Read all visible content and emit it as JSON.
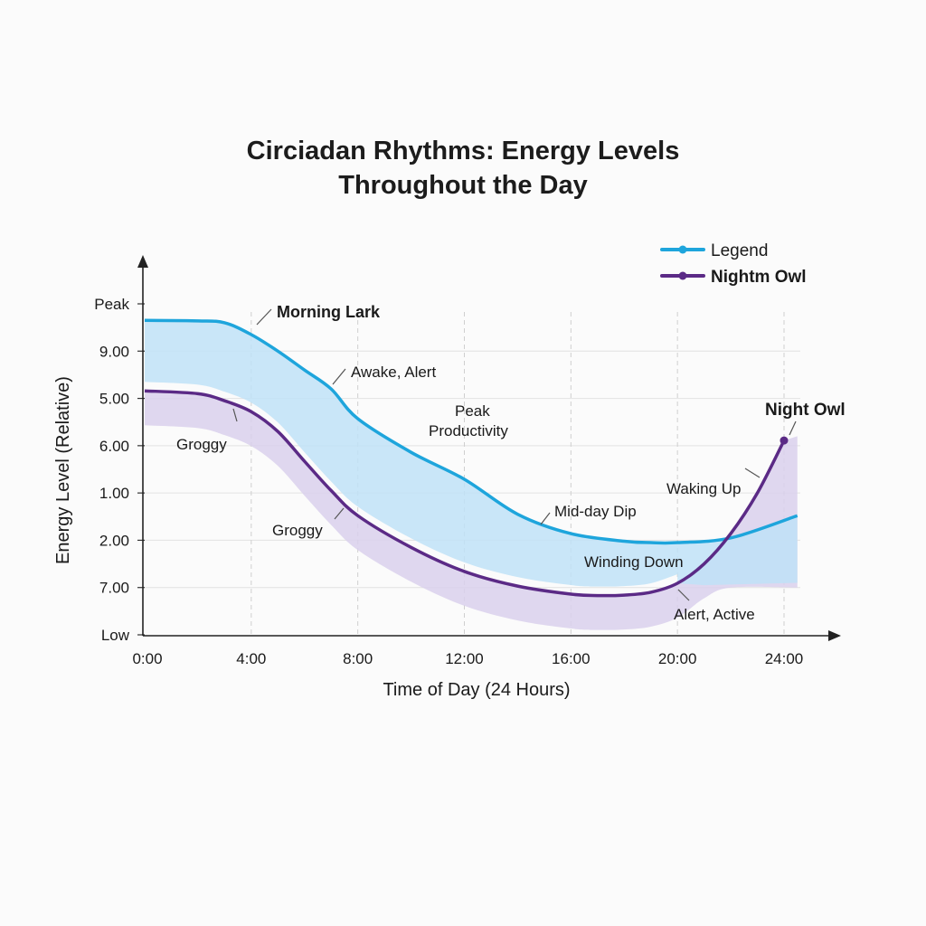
{
  "chart_data": {
    "type": "line",
    "title_line1": "Circiadan Rhythms: Energy Levels",
    "title_line2": "Throughout the Day",
    "xlabel": "Time of Day (24 Hours)",
    "ylabel": "Energy Level (Relative)",
    "x_ticks": [
      {
        "value": 0,
        "label": "0:00"
      },
      {
        "value": 4,
        "label": "4:00"
      },
      {
        "value": 8,
        "label": "8:00"
      },
      {
        "value": 12,
        "label": "12:00"
      },
      {
        "value": 16,
        "label": "16:00"
      },
      {
        "value": 20,
        "label": "20:00"
      },
      {
        "value": 24,
        "label": "24:00"
      }
    ],
    "y_ticks": [
      {
        "value": 0,
        "label": "Low"
      },
      {
        "value": 1,
        "label": "7.00"
      },
      {
        "value": 2,
        "label": "2.00"
      },
      {
        "value": 3,
        "label": "1.00"
      },
      {
        "value": 4,
        "label": "6.00"
      },
      {
        "value": 5,
        "label": "5.00"
      },
      {
        "value": 6,
        "label": "9.00"
      },
      {
        "value": 7,
        "label": "Peak"
      }
    ],
    "xlim": [
      0,
      24.5
    ],
    "ylim": [
      0,
      7
    ],
    "grid": true,
    "legend": {
      "position": "top-right",
      "entries": [
        {
          "label": "Legend",
          "color": "#1ea5dc"
        },
        {
          "label": "Nightm Owl",
          "color": "#5b2a86"
        }
      ]
    },
    "series": [
      {
        "name": "Morning Lark",
        "color": "#1ea5dc",
        "fill": "#bfe2f7",
        "x": [
          0,
          2,
          3,
          4,
          5,
          6,
          7,
          8,
          10,
          12,
          14,
          16,
          18,
          19,
          20,
          22,
          24.5
        ],
        "y": [
          6.65,
          6.64,
          6.6,
          6.35,
          6.0,
          5.6,
          5.2,
          4.57,
          3.86,
          3.29,
          2.55,
          2.14,
          1.98,
          1.95,
          1.95,
          2.05,
          2.52
        ]
      },
      {
        "name": "Night Owl",
        "color": "#5b2a86",
        "fill": "#d9d0ec",
        "x": [
          0,
          2,
          3,
          4,
          5,
          6,
          7,
          8,
          10,
          12,
          14,
          16,
          17,
          18,
          19,
          20,
          21,
          22,
          23,
          24
        ],
        "y": [
          5.16,
          5.1,
          4.95,
          4.72,
          4.3,
          3.67,
          3.05,
          2.52,
          1.85,
          1.34,
          1.03,
          0.86,
          0.83,
          0.84,
          0.9,
          1.09,
          1.5,
          2.14,
          3.0,
          4.11
        ]
      }
    ],
    "annotations": [
      {
        "text": "Morning Lark",
        "bold": true
      },
      {
        "text": "Awake, Alert"
      },
      {
        "text": "Groggy"
      },
      {
        "text": "Groggy"
      },
      {
        "text": "Peak"
      },
      {
        "text": "Productivity"
      },
      {
        "text": "Mid-day Dip"
      },
      {
        "text": "Winding Down"
      },
      {
        "text": "Waking Up"
      },
      {
        "text": "Alert, Active"
      },
      {
        "text": "Night Owl",
        "bold": true
      }
    ]
  }
}
